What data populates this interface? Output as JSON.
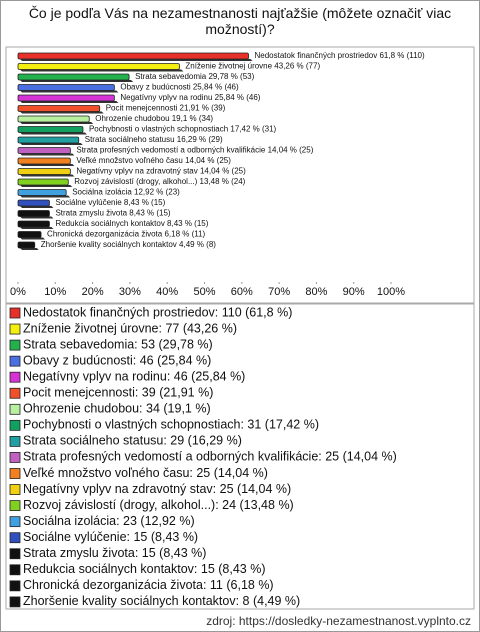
{
  "chart_data": {
    "type": "bar",
    "orientation": "horizontal",
    "title": "Čo je podľa Vás na nezamestnanosti najťažšie (môžete označiť viac možností)?",
    "values": [
      61.8,
      43.26,
      29.78,
      25.84,
      25.84,
      21.91,
      19.1,
      17.42,
      16.29,
      14.04,
      14.04,
      14.04,
      13.48,
      12.92,
      8.43,
      8.43,
      8.43,
      6.18,
      4.49
    ],
    "value_labels": [
      "Nedostatok finančných prostriedov 61,8 % (110)",
      "Zníženie životnej úrovne 43,26 % (77)",
      "Strata sebavedomia 29,78 % (53)",
      "Obavy z budúcnosti 25,84 % (46)",
      "Negatívny vplyv na rodinu 25,84 % (46)",
      "Pocit menejcennosti 21,91 % (39)",
      "Ohrozenie chudobou 19,1 % (34)",
      "Pochybnosti o vlastných schopnostiach 17,42 % (31)",
      "Strata sociálneho statusu 16,29 % (29)",
      "Strata profesných vedomostí a odborných kvalifikácie 14,04 % (25)",
      "Veľké množstvo voľného času 14,04 % (25)",
      "Negatívny vplyv na zdravotný stav 14,04 % (25)",
      "Rozvoj závislostí (drogy, alkohol...) 13,48 % (24)",
      "Sociálna izolácia 12,92 % (23)",
      "Sociálne vylúčenie 8,43 % (15)",
      "Strata zmyslu života 8,43 % (15)",
      "Redukcia sociálnych kontaktov 8,43 % (15)",
      "Chronická dezorganizácia života 6,18 % (11)",
      "Zhoršenie kvality sociálnych kontaktov 4,49 % (8)"
    ],
    "legend_labels": [
      "Nedostatok finančných prostriedov: 110 (61,8 %)",
      "Zníženie životnej úrovne: 77 (43,26 %)",
      "Strata sebavedomia: 53 (29,78 %)",
      "Obavy z budúcnosti: 46 (25,84 %)",
      "Negatívny vplyv na rodinu: 46 (25,84 %)",
      "Pocit menejcennosti: 39 (21,91 %)",
      "Ohrozenie chudobou: 34 (19,1 %)",
      "Pochybnosti o vlastných schopnostiach: 31 (17,42 %)",
      "Strata sociálneho statusu: 29 (16,29 %)",
      "Strata profesných vedomostí a odborných kvalifikácie: 25 (14,04 %)",
      "Veľké množstvo voľného času: 25 (14,04 %)",
      "Negatívny vplyv na zdravotný stav: 25 (14,04 %)",
      "Rozvoj závislostí (drogy, alkohol...): 24 (13,48 %)",
      "Sociálna izolácia: 23 (12,92 %)",
      "Sociálne vylúčenie: 15 (8,43 %)",
      "Strata zmyslu života: 15 (8,43 %)",
      "Redukcia sociálnych kontaktov: 15 (8,43 %)",
      "Chronická dezorganizácia života: 11 (6,18 %)",
      "Zhoršenie kvality sociálnych kontaktov: 8 (4,49 %)"
    ],
    "colors": [
      "#e8302a",
      "#f5ef10",
      "#22b14c",
      "#4a6fe0",
      "#d633d6",
      "#f0502a",
      "#b8f0a0",
      "#12a060",
      "#20a0a0",
      "#c060c0",
      "#f08020",
      "#f0d010",
      "#80d020",
      "#40a0e0",
      "#3050c0",
      "#111111",
      "#111111",
      "#111111",
      "#111111"
    ],
    "xlim": [
      0,
      100
    ],
    "xticks": [
      {
        "value": 0,
        "label": "0%"
      },
      {
        "value": 10,
        "label": "10%"
      },
      {
        "value": 20,
        "label": "20%"
      },
      {
        "value": 30,
        "label": "30%"
      },
      {
        "value": 40,
        "label": "40%"
      },
      {
        "value": 50,
        "label": "50%"
      },
      {
        "value": 60,
        "label": "60%"
      },
      {
        "value": 70,
        "label": "70%"
      },
      {
        "value": 80,
        "label": "80%"
      },
      {
        "value": 90,
        "label": "90%"
      },
      {
        "value": 100,
        "label": "100%"
      }
    ],
    "source": "zdroj: https://dosledky-nezamestnanost.vyplnto.cz"
  }
}
